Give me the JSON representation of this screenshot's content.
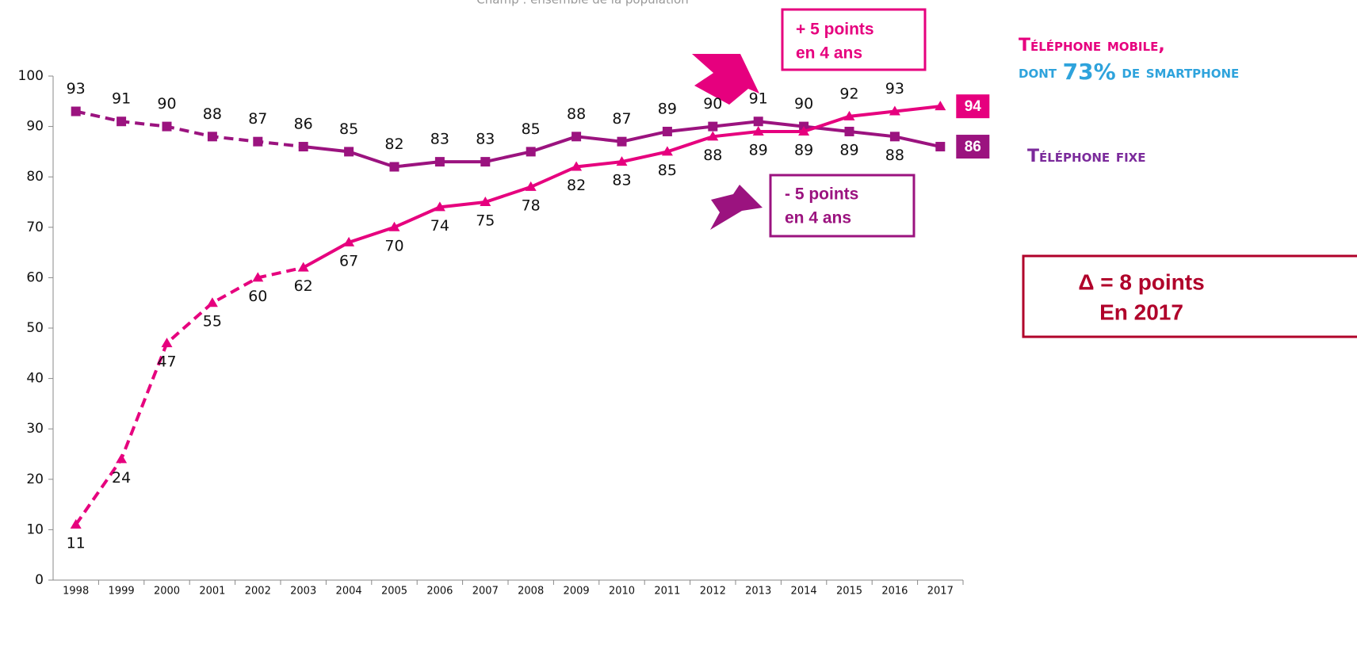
{
  "chart_data": {
    "type": "line",
    "subtitle": "Champ : ensemble de la population",
    "categories": [
      "1998",
      "1999",
      "2000",
      "2001",
      "2002",
      "2003",
      "2004",
      "2005",
      "2006",
      "2007",
      "2008",
      "2009",
      "2010",
      "2011",
      "2012",
      "2013",
      "2014",
      "2015",
      "2016",
      "2017"
    ],
    "dashed_through": "2003",
    "series": [
      {
        "name": "Téléphone fixe",
        "color": "#9b137f",
        "label_color": "#7b2a9b",
        "marker": "square",
        "values": [
          93,
          91,
          90,
          88,
          87,
          86,
          85,
          82,
          83,
          83,
          85,
          88,
          87,
          89,
          90,
          91,
          90,
          89,
          88,
          86
        ]
      },
      {
        "name": "Téléphone mobile,",
        "color": "#e6007e",
        "label_color": "#e6007e",
        "marker": "triangle",
        "values": [
          11,
          24,
          47,
          55,
          60,
          62,
          67,
          70,
          74,
          75,
          78,
          82,
          83,
          85,
          88,
          89,
          89,
          92,
          93,
          94
        ]
      }
    ],
    "smartphone_note": [
      "dont",
      "73%",
      "de smartphone"
    ],
    "annotations": {
      "up": [
        "+ 5 points",
        "en 4 ans"
      ],
      "down": [
        "- 5 points",
        "en 4 ans"
      ],
      "delta": [
        "Δ = 8 points",
        "En 2017"
      ]
    },
    "ylim": [
      0,
      100
    ],
    "yticks": [
      0,
      10,
      20,
      30,
      40,
      50,
      60,
      70,
      80,
      90,
      100
    ]
  }
}
